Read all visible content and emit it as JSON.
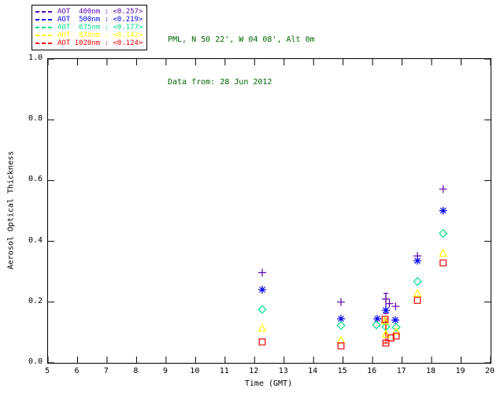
{
  "header": {
    "line1": "PML, N 50 22', W 04 08', Alt 0m",
    "line2": "Data from: 28 Jun 2012",
    "color": "#006600"
  },
  "legend": {
    "border_color": "#000000",
    "items_note": "one row per series, rendered from chart_data.series"
  },
  "chart_data": {
    "type": "scatter",
    "title": "",
    "xlabel": "Time (GMT)",
    "ylabel": "Aerosol Optical Thickness",
    "xlim": [
      5,
      20
    ],
    "ylim": [
      0.0,
      1.0
    ],
    "xticks": [
      5,
      6,
      7,
      8,
      9,
      10,
      11,
      12,
      13,
      14,
      15,
      16,
      17,
      18,
      19,
      20
    ],
    "yticks": [
      0.0,
      0.2,
      0.4,
      0.6,
      0.8,
      1.0
    ],
    "grid": false,
    "legend_position": "top-left-outside",
    "series": [
      {
        "name": "AOT 400nm",
        "legend_label": "AOT  400nm : <0.257>",
        "mean": 0.257,
        "color": "#5B00B0",
        "marker": "plus",
        "points": [
          [
            12.26,
            0.297
          ],
          [
            14.93,
            0.2
          ],
          [
            16.45,
            0.21
          ],
          [
            16.57,
            0.195
          ],
          [
            16.78,
            0.186
          ],
          [
            17.52,
            0.352
          ],
          [
            18.39,
            0.572
          ]
        ]
      },
      {
        "name": "AOT 500nm",
        "legend_label": "AOT  500nm : <0.219>",
        "mean": 0.219,
        "color": "#0000EE",
        "marker": "asterisk",
        "points": [
          [
            12.26,
            0.241
          ],
          [
            14.93,
            0.145
          ],
          [
            16.16,
            0.145
          ],
          [
            16.45,
            0.173
          ],
          [
            16.77,
            0.141
          ],
          [
            17.52,
            0.336
          ],
          [
            18.39,
            0.501
          ]
        ]
      },
      {
        "name": "AOT 675nm",
        "legend_label": "AOT  675nm : <0.177>",
        "mean": 0.177,
        "color": "#00E088",
        "marker": "diamond",
        "points": [
          [
            12.26,
            0.176
          ],
          [
            14.93,
            0.123
          ],
          [
            16.13,
            0.125
          ],
          [
            16.45,
            0.119
          ],
          [
            16.8,
            0.117
          ],
          [
            17.52,
            0.268
          ],
          [
            18.39,
            0.426
          ]
        ]
      },
      {
        "name": "AOT 870nm",
        "legend_label": "AOT  870nm : <0.142>",
        "mean": 0.142,
        "color": "#FFFF00",
        "marker": "triangle",
        "points": [
          [
            12.26,
            0.114
          ],
          [
            14.93,
            0.075
          ],
          [
            16.42,
            0.138
          ],
          [
            16.45,
            0.095
          ],
          [
            16.8,
            0.104
          ],
          [
            17.52,
            0.229
          ],
          [
            18.39,
            0.361
          ]
        ]
      },
      {
        "name": "AOT 1020nm",
        "legend_label": "AOT 1020nm : <0.124>",
        "mean": 0.124,
        "color": "#EE0000",
        "marker": "square",
        "points": [
          [
            12.26,
            0.069
          ],
          [
            14.93,
            0.056
          ],
          [
            16.42,
            0.143
          ],
          [
            16.45,
            0.065
          ],
          [
            16.62,
            0.082
          ],
          [
            16.8,
            0.088
          ],
          [
            17.52,
            0.206
          ],
          [
            18.39,
            0.329
          ]
        ]
      }
    ],
    "error_bars": [
      {
        "series": "AOT 400nm",
        "color": "#5B00B0",
        "t": 16.45,
        "lo": 0.163,
        "hi": 0.229
      },
      {
        "series": "AOT 870nm",
        "color": "#FFFF00",
        "t": 16.44,
        "lo": 0.095,
        "hi": 0.138
      },
      {
        "series": "AOT 1020nm",
        "color": "#EE0000",
        "t": 16.45,
        "lo": 0.065,
        "hi": 0.145
      }
    ]
  }
}
